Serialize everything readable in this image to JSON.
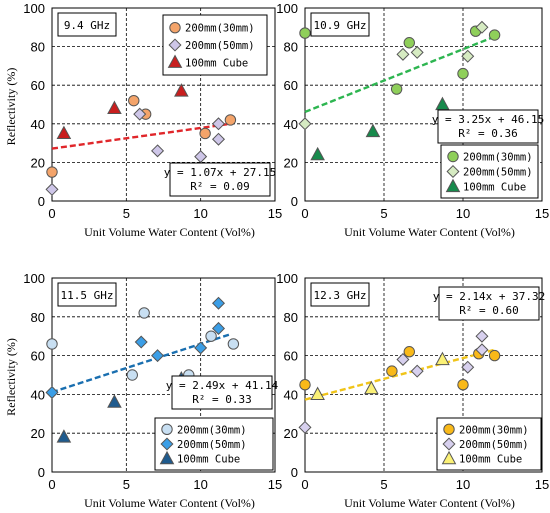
{
  "chart_data": [
    {
      "type": "scatter",
      "title": "9.4 GHz",
      "xlabel": "Unit Volume Water Content (Vol%)",
      "ylabel": "Reflectivity (%)",
      "xlim": [
        0,
        15
      ],
      "ylim": [
        0,
        100
      ],
      "xticks": [
        "0",
        "5",
        "10",
        "15"
      ],
      "yticks": [
        "0",
        "20",
        "40",
        "60",
        "80",
        "100"
      ],
      "grid": true,
      "legend_position": "top-right",
      "fit": {
        "equation": "y = 1.07x + 27.15",
        "r2": "R² = 0.09",
        "slope": 1.07,
        "intercept": 27.15,
        "x_range": [
          0,
          12
        ],
        "color": "#e0262a"
      },
      "series": [
        {
          "name": "200mm(30mm)",
          "marker": "circle",
          "color": "#f4a46a",
          "points": [
            [
              0,
              15
            ],
            [
              5.5,
              52
            ],
            [
              6.3,
              45
            ],
            [
              10.3,
              35
            ],
            [
              12,
              42
            ]
          ]
        },
        {
          "name": "200mm(50mm)",
          "marker": "diamond",
          "color": "#cec6e8",
          "points": [
            [
              0,
              6
            ],
            [
              5.9,
              45
            ],
            [
              7.1,
              26
            ],
            [
              10,
              23
            ],
            [
              11.2,
              32
            ],
            [
              11.2,
              40
            ]
          ]
        },
        {
          "name": "100mm Cube",
          "marker": "triangle",
          "color": "#c81e1e",
          "points": [
            [
              0.8,
              35
            ],
            [
              4.2,
              48
            ],
            [
              8.7,
              57
            ]
          ]
        }
      ]
    },
    {
      "type": "scatter",
      "title": "10.9 GHz",
      "xlabel": "Unit Volume Water Content (Vol%)",
      "ylabel": "",
      "xlim": [
        0,
        15
      ],
      "ylim": [
        0,
        100
      ],
      "xticks": [
        "0",
        "5",
        "10",
        "15"
      ],
      "yticks": [
        "0",
        "20",
        "40",
        "60",
        "80",
        "100"
      ],
      "grid": true,
      "legend_position": "bottom-right",
      "fit": {
        "equation": "y = 3.25x + 46.15",
        "r2": "R² = 0.36",
        "slope": 3.25,
        "intercept": 46.15,
        "x_range": [
          0,
          12
        ],
        "color": "#2db550"
      },
      "series": [
        {
          "name": "200mm(30mm)",
          "marker": "circle",
          "color": "#8fcf5a",
          "points": [
            [
              0,
              87
            ],
            [
              5.8,
              58
            ],
            [
              6.6,
              82
            ],
            [
              10,
              66
            ],
            [
              10.8,
              88
            ],
            [
              12,
              86
            ]
          ]
        },
        {
          "name": "200mm(50mm)",
          "marker": "diamond",
          "color": "#d6ebc2",
          "points": [
            [
              0,
              40
            ],
            [
              6.2,
              76
            ],
            [
              7.1,
              77
            ],
            [
              10.3,
              75
            ],
            [
              11.2,
              90
            ]
          ]
        },
        {
          "name": "100mm Cube",
          "marker": "triangle",
          "color": "#178a4c",
          "points": [
            [
              0.8,
              24
            ],
            [
              4.3,
              36
            ],
            [
              8.7,
              50
            ]
          ]
        }
      ]
    },
    {
      "type": "scatter",
      "title": "11.5 GHz",
      "xlabel": "Unit Volume Water Content (Vol%)",
      "ylabel": "Reflectivity (%)",
      "xlim": [
        0,
        15
      ],
      "ylim": [
        0,
        100
      ],
      "xticks": [
        "0",
        "5",
        "10",
        "15"
      ],
      "yticks": [
        "0",
        "20",
        "40",
        "60",
        "80",
        "100"
      ],
      "grid": true,
      "legend_position": "bottom-right",
      "fit": {
        "equation": "y = 2.49x + 41.14",
        "r2": "R² = 0.33",
        "slope": 2.49,
        "intercept": 41.14,
        "x_range": [
          0,
          12
        ],
        "color": "#1a6fb0"
      },
      "series": [
        {
          "name": "200mm(30mm)",
          "marker": "circle",
          "color": "#c8dff2",
          "points": [
            [
              0,
              66
            ],
            [
              5.4,
              50
            ],
            [
              6.2,
              82
            ],
            [
              9.2,
              50
            ],
            [
              10.7,
              70
            ],
            [
              12.2,
              66
            ]
          ]
        },
        {
          "name": "200mm(50mm)",
          "marker": "diamond",
          "color": "#3b9ee6",
          "points": [
            [
              0,
              41
            ],
            [
              6,
              67
            ],
            [
              7.1,
              60
            ],
            [
              10,
              64
            ],
            [
              11.2,
              87
            ],
            [
              11.2,
              74
            ]
          ]
        },
        {
          "name": "100mm Cube",
          "marker": "triangle",
          "color": "#1f5b8e",
          "points": [
            [
              0.8,
              18
            ],
            [
              4.2,
              36
            ],
            [
              8.7,
              48
            ]
          ]
        }
      ]
    },
    {
      "type": "scatter",
      "title": "12.3 GHz",
      "xlabel": "Unit Volume Water Content (Vol%)",
      "ylabel": "",
      "xlim": [
        0,
        15
      ],
      "ylim": [
        0,
        100
      ],
      "xticks": [
        "0",
        "5",
        "10",
        "15"
      ],
      "yticks": [
        "0",
        "20",
        "40",
        "60",
        "80",
        "100"
      ],
      "grid": true,
      "legend_position": "bottom-right",
      "fit": {
        "equation": "y = 2.14x + 37.32",
        "r2": "R² = 0.60",
        "slope": 2.14,
        "intercept": 37.32,
        "x_range": [
          0,
          12
        ],
        "color": "#f0c419"
      },
      "series": [
        {
          "name": "200mm(30mm)",
          "marker": "circle",
          "color": "#f9b919",
          "points": [
            [
              0,
              45
            ],
            [
              5.5,
              52
            ],
            [
              6.6,
              62
            ],
            [
              10,
              45
            ],
            [
              11,
              61
            ],
            [
              12,
              60
            ]
          ]
        },
        {
          "name": "200mm(50mm)",
          "marker": "diamond",
          "color": "#d7d0ee",
          "points": [
            [
              0,
              23
            ],
            [
              6.2,
              58
            ],
            [
              7.1,
              52
            ],
            [
              10.3,
              54
            ],
            [
              11.2,
              70
            ],
            [
              11.2,
              63
            ]
          ]
        },
        {
          "name": "100mm Cube",
          "marker": "triangle",
          "color": "#fbf176",
          "points": [
            [
              0.8,
              40
            ],
            [
              4.2,
              43
            ],
            [
              8.7,
              58
            ]
          ]
        }
      ]
    }
  ]
}
